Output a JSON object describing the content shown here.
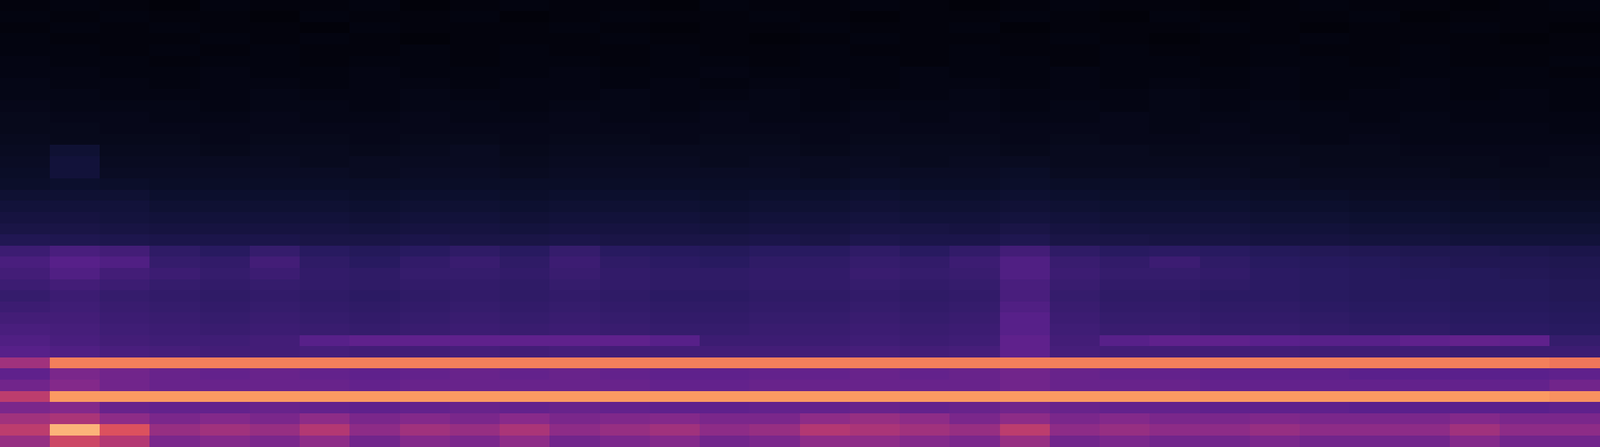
{
  "chart_data": {
    "type": "heatmap",
    "tick_labels": false,
    "zlim": [
      0,
      100
    ],
    "cells": [
      [
        3,
        4,
        3,
        2,
        4,
        3,
        3,
        4,
        2,
        3,
        4,
        3,
        3,
        2,
        4,
        3,
        3,
        4,
        3,
        2,
        3,
        4,
        3,
        3,
        2,
        3,
        4,
        3,
        3,
        2,
        3,
        4
      ],
      [
        4,
        3,
        4,
        3,
        3,
        2,
        4,
        3,
        3,
        4,
        2,
        3,
        4,
        3,
        3,
        4,
        3,
        2,
        3,
        3,
        4,
        3,
        2,
        4,
        3,
        3,
        3,
        4,
        2,
        3,
        3,
        3
      ],
      [
        3,
        4,
        3,
        4,
        3,
        3,
        2,
        4,
        3,
        3,
        3,
        4,
        3,
        2,
        3,
        3,
        4,
        3,
        3,
        4,
        2,
        3,
        3,
        3,
        4,
        3,
        2,
        3,
        3,
        4,
        3,
        2
      ],
      [
        4,
        3,
        3,
        3,
        4,
        3,
        4,
        3,
        2,
        3,
        3,
        3,
        4,
        3,
        3,
        2,
        3,
        4,
        3,
        3,
        3,
        4,
        3,
        2,
        3,
        3,
        4,
        3,
        3,
        3,
        2,
        3
      ],
      [
        4,
        4,
        3,
        4,
        3,
        4,
        3,
        3,
        4,
        3,
        4,
        3,
        3,
        4,
        3,
        3,
        4,
        3,
        3,
        4,
        3,
        3,
        4,
        3,
        3,
        4,
        3,
        3,
        4,
        3,
        3,
        3
      ],
      [
        5,
        4,
        4,
        3,
        4,
        4,
        3,
        4,
        4,
        3,
        4,
        4,
        3,
        4,
        4,
        3,
        4,
        4,
        3,
        4,
        4,
        3,
        4,
        4,
        3,
        4,
        4,
        3,
        4,
        3,
        3,
        4
      ],
      [
        5,
        5,
        4,
        4,
        5,
        4,
        4,
        5,
        4,
        4,
        4,
        5,
        4,
        4,
        5,
        4,
        4,
        4,
        5,
        4,
        4,
        5,
        4,
        4,
        4,
        5,
        4,
        4,
        4,
        4,
        4,
        3
      ],
      [
        6,
        5,
        5,
        4,
        5,
        5,
        4,
        5,
        5,
        4,
        5,
        5,
        4,
        5,
        4,
        5,
        5,
        4,
        5,
        5,
        4,
        5,
        4,
        5,
        4,
        5,
        4,
        4,
        5,
        4,
        4,
        4
      ],
      [
        6,
        6,
        5,
        5,
        5,
        6,
        5,
        5,
        6,
        5,
        5,
        5,
        6,
        5,
        5,
        6,
        5,
        5,
        5,
        6,
        5,
        5,
        5,
        6,
        5,
        5,
        4,
        5,
        5,
        4,
        5,
        4
      ],
      [
        7,
        6,
        6,
        6,
        5,
        6,
        6,
        5,
        6,
        6,
        5,
        6,
        6,
        5,
        6,
        6,
        5,
        6,
        6,
        6,
        5,
        6,
        5,
        6,
        5,
        6,
        5,
        5,
        5,
        5,
        5,
        4
      ],
      [
        8,
        7,
        7,
        6,
        6,
        7,
        6,
        6,
        7,
        6,
        6,
        7,
        6,
        6,
        7,
        6,
        6,
        7,
        6,
        7,
        6,
        6,
        7,
        6,
        6,
        6,
        6,
        5,
        6,
        5,
        5,
        5
      ],
      [
        8,
        8,
        7,
        7,
        7,
        7,
        7,
        7,
        7,
        7,
        7,
        7,
        7,
        7,
        7,
        7,
        7,
        7,
        7,
        7,
        7,
        7,
        7,
        6,
        7,
        6,
        6,
        6,
        6,
        6,
        6,
        5
      ],
      [
        9,
        8,
        8,
        8,
        7,
        8,
        8,
        7,
        8,
        8,
        7,
        8,
        8,
        7,
        8,
        8,
        7,
        8,
        8,
        8,
        7,
        8,
        7,
        7,
        7,
        7,
        6,
        7,
        6,
        6,
        6,
        6
      ],
      [
        10,
        16,
        9,
        9,
        8,
        9,
        9,
        8,
        9,
        10,
        8,
        9,
        9,
        9,
        9,
        9,
        8,
        9,
        9,
        9,
        8,
        9,
        9,
        8,
        8,
        8,
        8,
        8,
        7,
        7,
        7,
        7
      ],
      [
        11,
        18,
        10,
        10,
        10,
        10,
        9,
        10,
        10,
        10,
        9,
        10,
        10,
        10,
        9,
        10,
        10,
        10,
        9,
        10,
        10,
        9,
        9,
        9,
        9,
        9,
        8,
        8,
        8,
        8,
        7,
        8
      ],
      [
        12,
        18,
        11,
        11,
        11,
        11,
        11,
        10,
        11,
        11,
        10,
        11,
        11,
        11,
        11,
        11,
        10,
        11,
        11,
        11,
        12,
        10,
        10,
        10,
        10,
        9,
        9,
        9,
        9,
        8,
        8,
        8
      ],
      [
        13,
        14,
        13,
        12,
        12,
        12,
        12,
        12,
        12,
        12,
        12,
        12,
        12,
        12,
        12,
        12,
        12,
        13,
        12,
        12,
        13,
        12,
        12,
        12,
        11,
        11,
        10,
        10,
        10,
        10,
        9,
        9
      ],
      [
        16,
        16,
        16,
        14,
        14,
        14,
        14,
        13,
        14,
        14,
        13,
        14,
        14,
        14,
        13,
        14,
        14,
        15,
        14,
        14,
        15,
        14,
        13,
        13,
        13,
        12,
        12,
        11,
        11,
        11,
        10,
        10
      ],
      [
        18,
        18,
        18,
        16,
        16,
        16,
        16,
        15,
        16,
        16,
        15,
        16,
        16,
        16,
        15,
        16,
        16,
        17,
        16,
        16,
        17,
        16,
        15,
        15,
        15,
        14,
        14,
        13,
        13,
        12,
        12,
        12
      ],
      [
        20,
        20,
        19,
        18,
        18,
        18,
        18,
        17,
        18,
        18,
        17,
        18,
        18,
        18,
        17,
        18,
        18,
        19,
        18,
        18,
        19,
        18,
        17,
        17,
        17,
        16,
        16,
        15,
        15,
        14,
        14,
        14
      ],
      [
        22,
        22,
        21,
        20,
        20,
        20,
        20,
        19,
        20,
        20,
        19,
        20,
        20,
        20,
        19,
        20,
        20,
        21,
        21,
        20,
        22,
        20,
        19,
        19,
        19,
        18,
        18,
        17,
        17,
        16,
        16,
        16
      ],
      [
        26,
        25,
        24,
        23,
        23,
        23,
        22,
        22,
        23,
        22,
        22,
        23,
        22,
        22,
        22,
        23,
        22,
        24,
        23,
        23,
        25,
        22,
        22,
        21,
        21,
        20,
        20,
        19,
        19,
        18,
        18,
        18
      ],
      [
        36,
        40,
        38,
        32,
        30,
        34,
        30,
        28,
        30,
        32,
        30,
        34,
        30,
        29,
        28,
        30,
        30,
        32,
        30,
        33,
        38,
        32,
        30,
        31,
        30,
        28,
        27,
        26,
        25,
        25,
        24,
        23
      ],
      [
        40,
        44,
        42,
        34,
        33,
        38,
        32,
        30,
        33,
        35,
        32,
        36,
        32,
        31,
        30,
        32,
        32,
        34,
        33,
        36,
        42,
        35,
        33,
        36,
        32,
        30,
        29,
        28,
        27,
        26,
        26,
        25
      ],
      [
        38,
        42,
        38,
        36,
        34,
        36,
        33,
        32,
        34,
        34,
        33,
        35,
        33,
        32,
        32,
        33,
        33,
        35,
        34,
        35,
        42,
        36,
        34,
        34,
        33,
        31,
        30,
        29,
        28,
        28,
        27,
        26
      ],
      [
        36,
        38,
        36,
        34,
        33,
        34,
        33,
        32,
        33,
        33,
        32,
        34,
        33,
        32,
        32,
        33,
        33,
        34,
        33,
        34,
        40,
        35,
        33,
        33,
        32,
        31,
        30,
        29,
        29,
        28,
        28,
        27
      ],
      [
        34,
        36,
        34,
        33,
        32,
        33,
        32,
        31,
        32,
        33,
        32,
        33,
        32,
        31,
        31,
        32,
        32,
        33,
        32,
        33,
        40,
        34,
        32,
        32,
        31,
        31,
        30,
        29,
        29,
        28,
        28,
        27
      ],
      [
        36,
        37,
        35,
        34,
        33,
        34,
        33,
        32,
        33,
        34,
        33,
        34,
        33,
        32,
        32,
        33,
        33,
        34,
        33,
        34,
        42,
        35,
        33,
        33,
        32,
        32,
        31,
        30,
        30,
        29,
        29,
        28
      ],
      [
        38,
        38,
        36,
        35,
        34,
        35,
        34,
        33,
        34,
        35,
        34,
        35,
        34,
        33,
        33,
        34,
        34,
        35,
        34,
        35,
        44,
        36,
        34,
        34,
        33,
        33,
        32,
        31,
        31,
        30,
        30,
        29
      ],
      [
        40,
        39,
        37,
        36,
        35,
        36,
        35,
        34,
        35,
        36,
        35,
        36,
        35,
        34,
        34,
        35,
        35,
        36,
        35,
        36,
        44,
        37,
        35,
        35,
        34,
        34,
        33,
        32,
        32,
        31,
        31,
        30
      ],
      [
        42,
        40,
        38,
        37,
        37,
        38,
        44,
        46,
        46,
        46,
        46,
        46,
        46,
        44,
        36,
        36,
        36,
        37,
        36,
        37,
        46,
        38,
        44,
        46,
        46,
        45,
        44,
        44,
        46,
        47,
        46,
        34
      ],
      [
        44,
        42,
        40,
        39,
        38,
        38,
        39,
        38,
        38,
        39,
        38,
        39,
        38,
        38,
        38,
        38,
        38,
        39,
        38,
        39,
        46,
        39,
        38,
        38,
        38,
        38,
        37,
        37,
        37,
        36,
        36,
        36
      ],
      [
        60,
        86,
        86,
        86,
        86,
        86,
        86,
        86,
        86,
        86,
        86,
        86,
        86,
        86,
        86,
        86,
        86,
        86,
        86,
        86,
        86,
        86,
        86,
        86,
        86,
        86,
        86,
        86,
        86,
        86,
        86,
        84
      ],
      [
        46,
        52,
        50,
        48,
        47,
        48,
        47,
        46,
        47,
        48,
        47,
        48,
        47,
        46,
        46,
        47,
        47,
        48,
        47,
        48,
        50,
        48,
        47,
        47,
        46,
        46,
        46,
        45,
        45,
        45,
        45,
        46
      ],
      [
        50,
        54,
        50,
        48,
        48,
        48,
        48,
        47,
        48,
        48,
        48,
        48,
        48,
        47,
        47,
        48,
        48,
        48,
        48,
        48,
        50,
        48,
        48,
        48,
        47,
        47,
        47,
        47,
        47,
        47,
        47,
        50
      ],
      [
        66,
        92,
        92,
        92,
        92,
        92,
        92,
        92,
        92,
        92,
        92,
        92,
        92,
        92,
        92,
        92,
        92,
        92,
        92,
        92,
        92,
        92,
        92,
        92,
        92,
        92,
        92,
        92,
        92,
        92,
        92,
        90
      ],
      [
        52,
        54,
        48,
        47,
        47,
        48,
        47,
        46,
        47,
        48,
        47,
        48,
        47,
        46,
        46,
        47,
        47,
        48,
        47,
        48,
        50,
        48,
        47,
        47,
        46,
        46,
        46,
        45,
        45,
        45,
        45,
        46
      ],
      [
        60,
        62,
        56,
        52,
        54,
        52,
        56,
        52,
        54,
        52,
        55,
        52,
        53,
        54,
        52,
        52,
        56,
        58,
        56,
        52,
        56,
        52,
        54,
        52,
        52,
        53,
        52,
        52,
        52,
        54,
        52,
        52
      ],
      [
        66,
        95,
        74,
        58,
        60,
        58,
        64,
        56,
        60,
        58,
        62,
        56,
        58,
        60,
        56,
        58,
        64,
        62,
        60,
        58,
        66,
        56,
        58,
        56,
        56,
        58,
        56,
        56,
        56,
        60,
        56,
        56
      ],
      [
        58,
        70,
        64,
        52,
        54,
        52,
        56,
        50,
        54,
        52,
        56,
        50,
        52,
        54,
        50,
        52,
        56,
        56,
        54,
        52,
        58,
        50,
        52,
        50,
        50,
        52,
        50,
        50,
        50,
        54,
        50,
        50
      ]
    ]
  }
}
